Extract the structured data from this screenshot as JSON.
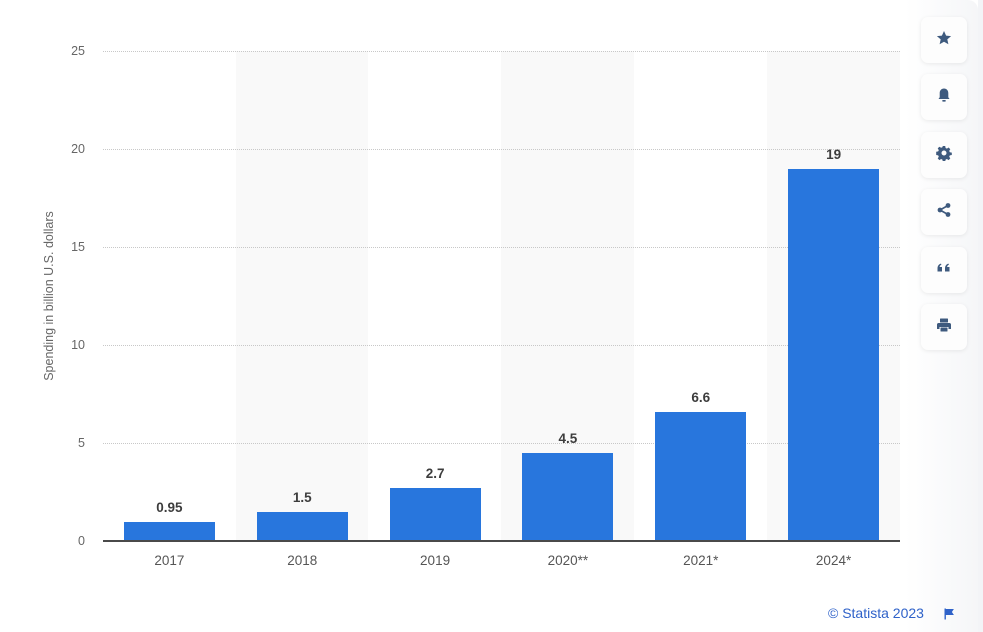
{
  "chart_data": {
    "type": "bar",
    "title": "",
    "xlabel": "",
    "ylabel": "Spending in billion U.S. dollars",
    "categories": [
      "2017",
      "2018",
      "2019",
      "2020**",
      "2021*",
      "2024*"
    ],
    "values": [
      0.95,
      1.5,
      2.7,
      4.5,
      6.6,
      19
    ],
    "value_labels": [
      "0.95",
      "1.5",
      "2.7",
      "4.5",
      "6.6",
      "19"
    ],
    "ylim": [
      0,
      25
    ],
    "yticks": [
      "0",
      "5",
      "10",
      "15",
      "20",
      "25"
    ],
    "grid": true,
    "legend": null,
    "bar_color": "#2876dd"
  },
  "sidebar": {
    "buttons": [
      {
        "name": "favorite",
        "icon": "star-icon"
      },
      {
        "name": "notification",
        "icon": "bell-icon"
      },
      {
        "name": "settings",
        "icon": "gear-icon"
      },
      {
        "name": "share",
        "icon": "share-icon"
      },
      {
        "name": "cite",
        "icon": "quote-icon"
      },
      {
        "name": "print",
        "icon": "print-icon"
      }
    ]
  },
  "footer": {
    "credit": "© Statista 2023",
    "flag_icon": "flag-icon"
  },
  "colors": {
    "bar": "#2876dd",
    "band": "#f9f9f9",
    "icon": "#3e5a7e",
    "credit": "#2f62c9"
  }
}
